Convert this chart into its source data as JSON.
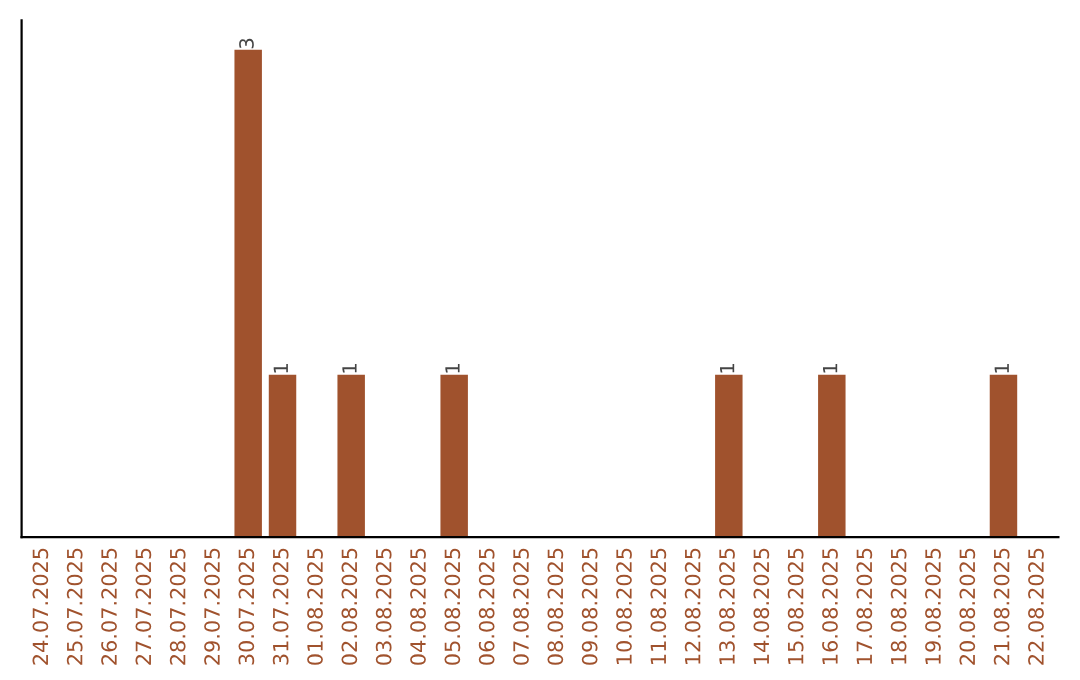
{
  "chart_data": {
    "type": "bar",
    "categories": [
      "24.07.2025",
      "25.07.2025",
      "26.07.2025",
      "27.07.2025",
      "28.07.2025",
      "29.07.2025",
      "30.07.2025",
      "31.07.2025",
      "01.08.2025",
      "02.08.2025",
      "03.08.2025",
      "04.08.2025",
      "05.08.2025",
      "06.08.2025",
      "07.08.2025",
      "08.08.2025",
      "09.08.2025",
      "10.08.2025",
      "11.08.2025",
      "12.08.2025",
      "13.08.2025",
      "14.08.2025",
      "15.08.2025",
      "16.08.2025",
      "17.08.2025",
      "18.08.2025",
      "19.08.2025",
      "20.08.2025",
      "21.08.2025",
      "22.08.2025"
    ],
    "values": [
      0,
      0,
      0,
      0,
      0,
      0,
      3,
      1,
      0,
      1,
      0,
      0,
      1,
      0,
      0,
      0,
      0,
      0,
      0,
      0,
      1,
      0,
      0,
      1,
      0,
      0,
      0,
      0,
      1,
      0
    ],
    "color": "#a0522d",
    "value_labels": [
      null,
      null,
      null,
      null,
      null,
      null,
      "3",
      "1",
      null,
      "1",
      null,
      null,
      "1",
      null,
      null,
      null,
      null,
      null,
      null,
      null,
      "1",
      null,
      null,
      "1",
      null,
      null,
      null,
      null,
      "1",
      null
    ],
    "tick_labels": "x",
    "grid": false,
    "legend": false
  }
}
